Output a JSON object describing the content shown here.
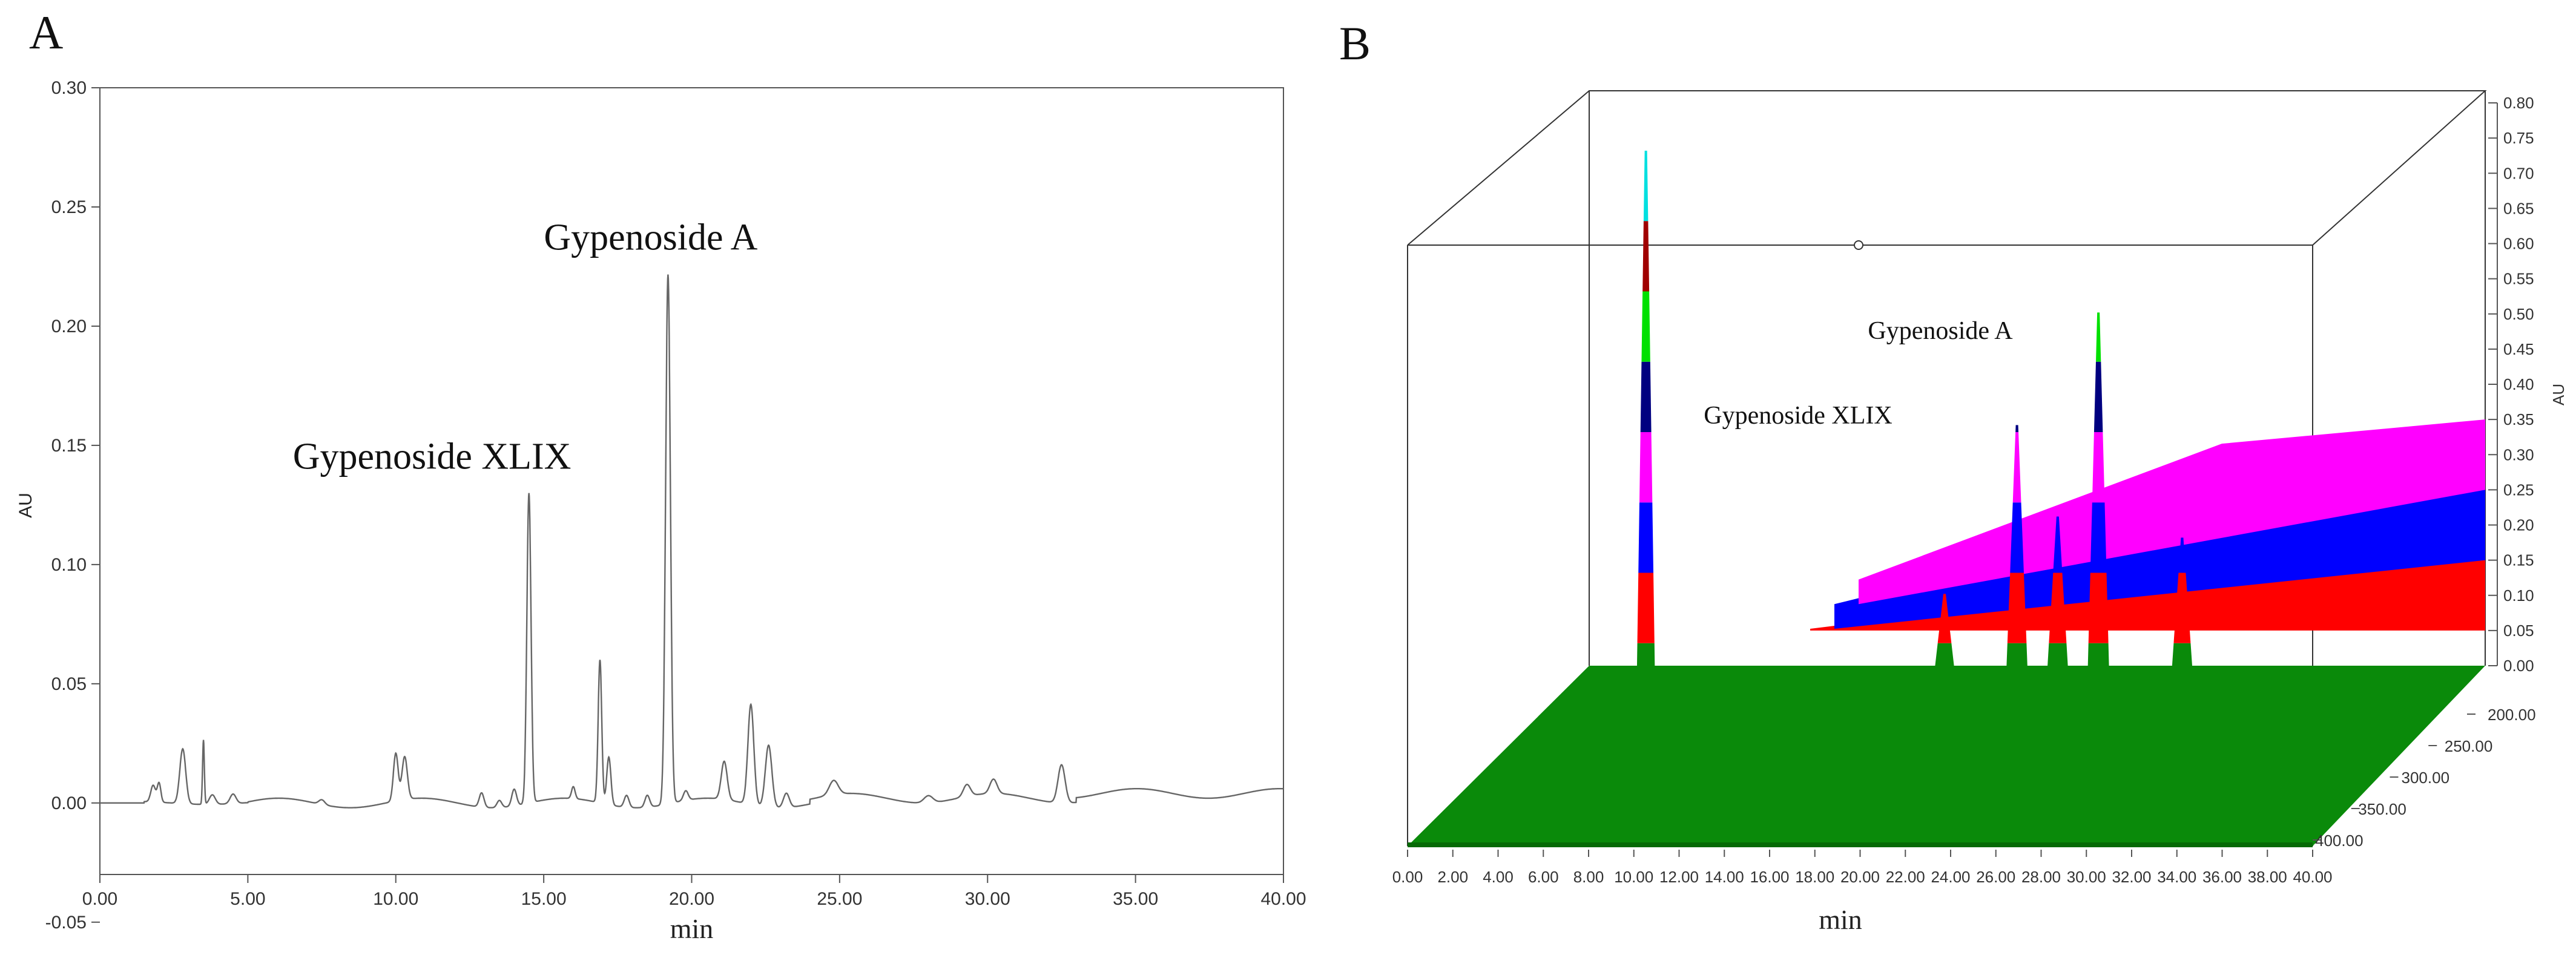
{
  "panels": {
    "a_label": "A",
    "b_label": "B"
  },
  "chart_data": [
    {
      "type": "line",
      "panel": "A",
      "title": "",
      "xlabel": "min",
      "ylabel": "AU",
      "xlim": [
        0,
        40
      ],
      "ylim": [
        -0.03,
        0.3
      ],
      "x_ticks": [
        "0.00",
        "5.00",
        "10.00",
        "15.00",
        "20.00",
        "25.00",
        "30.00",
        "35.00",
        "40.00"
      ],
      "y_ticks": [
        "0.30",
        "0.25",
        "0.20",
        "0.15",
        "0.10",
        "0.05",
        "0.00",
        "-0.05"
      ],
      "grid": false,
      "baseline": 0.0,
      "peaks": [
        {
          "x": 1.8,
          "y": 0.007,
          "w": 0.08
        },
        {
          "x": 2.0,
          "y": 0.008,
          "w": 0.06
        },
        {
          "x": 2.8,
          "y": 0.023,
          "w": 0.1
        },
        {
          "x": 3.5,
          "y": 0.027,
          "w": 0.03
        },
        {
          "x": 3.8,
          "y": 0.004,
          "w": 0.1
        },
        {
          "x": 4.5,
          "y": 0.004,
          "w": 0.1
        },
        {
          "x": 7.5,
          "y": 0.002,
          "w": 0.1
        },
        {
          "x": 10.0,
          "y": 0.02,
          "w": 0.08
        },
        {
          "x": 10.3,
          "y": 0.018,
          "w": 0.09
        },
        {
          "x": 12.9,
          "y": 0.006,
          "w": 0.08
        },
        {
          "x": 13.5,
          "y": 0.003,
          "w": 0.08
        },
        {
          "x": 14.0,
          "y": 0.007,
          "w": 0.08
        },
        {
          "x": 14.5,
          "y": 0.13,
          "w": 0.07
        },
        {
          "x": 16.0,
          "y": 0.005,
          "w": 0.06
        },
        {
          "x": 16.9,
          "y": 0.06,
          "w": 0.06
        },
        {
          "x": 17.2,
          "y": 0.02,
          "w": 0.07
        },
        {
          "x": 17.8,
          "y": 0.005,
          "w": 0.08
        },
        {
          "x": 18.5,
          "y": 0.005,
          "w": 0.08
        },
        {
          "x": 19.2,
          "y": 0.222,
          "w": 0.08
        },
        {
          "x": 19.8,
          "y": 0.004,
          "w": 0.08
        },
        {
          "x": 21.1,
          "y": 0.016,
          "w": 0.1
        },
        {
          "x": 22.0,
          "y": 0.042,
          "w": 0.1
        },
        {
          "x": 22.6,
          "y": 0.026,
          "w": 0.11
        },
        {
          "x": 23.2,
          "y": 0.006,
          "w": 0.1
        },
        {
          "x": 24.8,
          "y": 0.006,
          "w": 0.15
        },
        {
          "x": 28.0,
          "y": 0.003,
          "w": 0.15
        },
        {
          "x": 29.3,
          "y": 0.005,
          "w": 0.12
        },
        {
          "x": 30.2,
          "y": 0.006,
          "w": 0.12
        },
        {
          "x": 32.5,
          "y": 0.016,
          "w": 0.12
        }
      ],
      "annotations": [
        {
          "text": "Gypenoside XLIX",
          "x": 14.5,
          "y": 0.13
        },
        {
          "text": "Gypenoside A",
          "x": 19.2,
          "y": 0.222
        }
      ]
    },
    {
      "type": "area",
      "panel": "B",
      "title": "",
      "xlabel": "min",
      "zlabel": "AU",
      "x_ticks": [
        "0.00",
        "2.00",
        "4.00",
        "6.00",
        "8.00",
        "10.00",
        "12.00",
        "14.00",
        "16.00",
        "18.00",
        "20.00",
        "22.00",
        "24.00",
        "26.00",
        "28.00",
        "30.00",
        "32.00",
        "34.00",
        "36.00",
        "38.00",
        "40.00"
      ],
      "depth_ticks": [
        "200.00",
        "250.00",
        "300.00",
        "350.00",
        "400.00"
      ],
      "z_ticks": [
        "0.80",
        "0.75",
        "0.70",
        "0.65",
        "0.60",
        "0.55",
        "0.50",
        "0.45",
        "0.40",
        "0.35",
        "0.30",
        "0.25",
        "0.20",
        "0.15",
        "0.10",
        "0.05",
        "0.00"
      ],
      "xlim": [
        0,
        40
      ],
      "zlim": [
        0,
        0.8
      ],
      "color_bands": [
        {
          "from": 0.0,
          "to": 0.05,
          "color": "#0a8a0a"
        },
        {
          "from": 0.05,
          "to": 0.15,
          "color": "#ff0000"
        },
        {
          "from": 0.15,
          "to": 0.25,
          "color": "#0000ff"
        },
        {
          "from": 0.25,
          "to": 0.35,
          "color": "#ff00ff"
        },
        {
          "from": 0.35,
          "to": 0.45,
          "color": "#000080"
        },
        {
          "from": 0.45,
          "to": 0.55,
          "color": "#00e000"
        },
        {
          "from": 0.55,
          "to": 0.65,
          "color": "#a00000"
        },
        {
          "from": 0.65,
          "to": 0.8,
          "color": "#00e0e0"
        }
      ],
      "peaks": [
        {
          "x": 2.8,
          "z": 0.75
        },
        {
          "x": 16.0,
          "z": 0.12
        },
        {
          "x": 19.2,
          "z": 0.36
        },
        {
          "x": 21.0,
          "z": 0.23
        },
        {
          "x": 22.8,
          "z": 0.52
        },
        {
          "x": 26.5,
          "z": 0.2
        }
      ],
      "annotations": [
        {
          "text": "Gypenoside XLIX",
          "x": 19.2
        },
        {
          "text": "Gypenoside A",
          "x": 22.8
        }
      ]
    }
  ]
}
